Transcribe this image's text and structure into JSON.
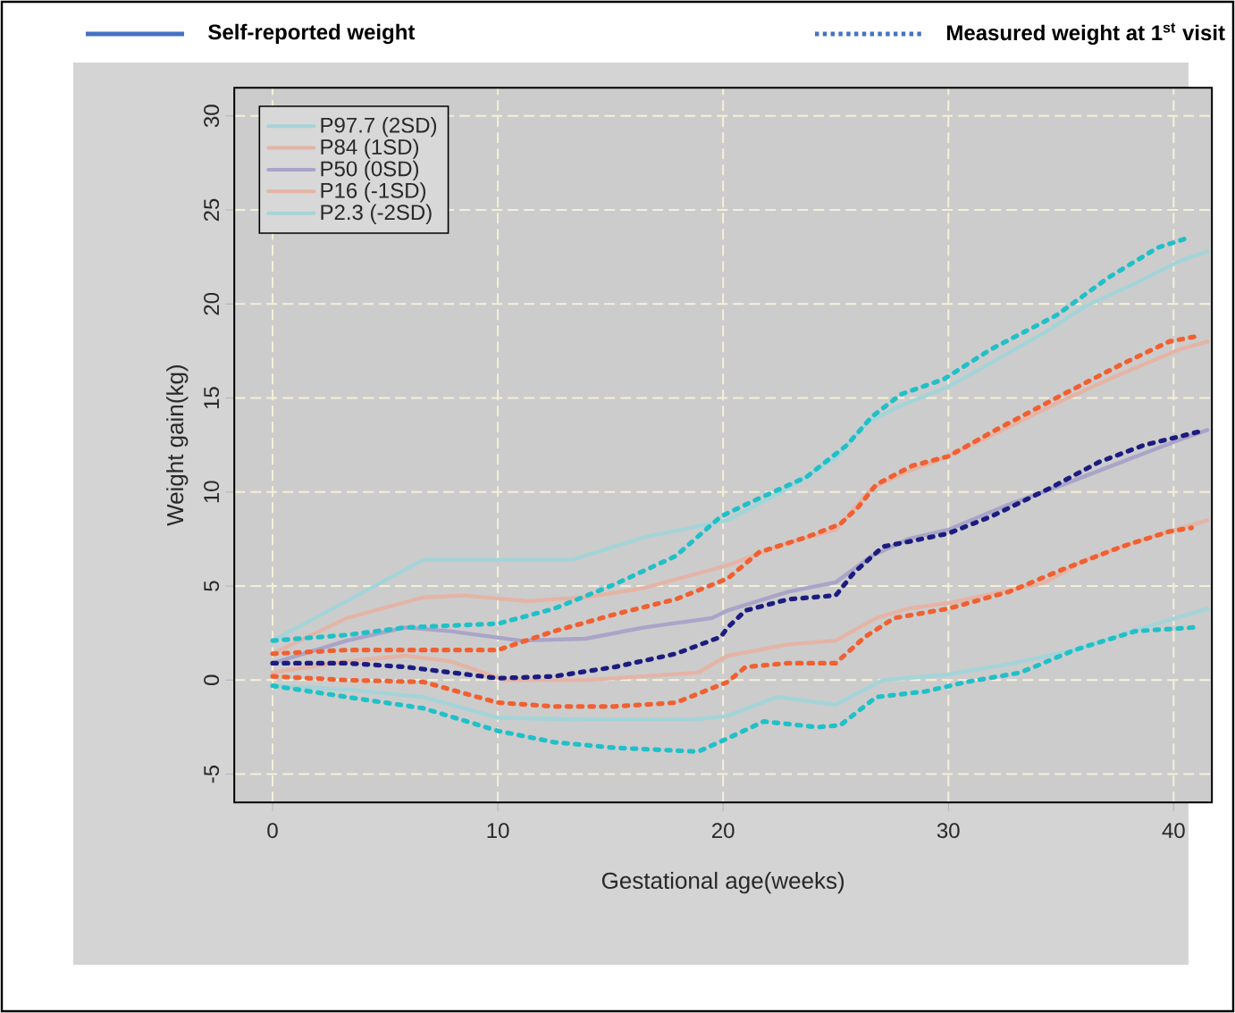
{
  "chart_data": {
    "type": "line",
    "xlabel": "Gestational age(weeks)",
    "ylabel": "Weight gain(kg)",
    "annotations": [
      "Self-reported weight",
      "Measured weight at 1$^{st}$ visit"
    ],
    "xlim": [
      -1.7,
      41.7
    ],
    "ylim": [
      -6.5,
      31.5
    ],
    "xticks": [
      0,
      10,
      20,
      30,
      40
    ],
    "yticks": [
      -5,
      0,
      5,
      10,
      15,
      20,
      25,
      30
    ],
    "grid": true,
    "legend": "top left",
    "marker": "none",
    "series": [
      {
        "name": "P97.7 (2SD)",
        "color": "#a4d4d8",
        "line_style": "solid",
        "x": [
          0,
          3.3,
          6.7,
          10,
          13.3,
          16.5,
          20.2,
          22.6,
          25,
          26.4,
          27.9,
          30,
          32.1,
          34.3,
          36.1,
          38.3,
          40.3,
          41.5
        ],
        "values": [
          2.1,
          4.2,
          6.4,
          6.4,
          6.4,
          7.6,
          8.5,
          10.0,
          11.8,
          13.7,
          14.6,
          15.6,
          17.0,
          18.5,
          19.9,
          21.1,
          22.3,
          22.8
        ]
      },
      {
        "name": "P84 (1SD)",
        "color": "#e4b4a6",
        "line_style": "solid",
        "x": [
          0,
          3.3,
          6.7,
          8.5,
          11.3,
          13.9,
          16.5,
          20.2,
          22.9,
          25,
          26.6,
          28.2,
          30,
          32.4,
          35.1,
          37.7,
          40.3,
          41.5
        ],
        "values": [
          1.4,
          3.3,
          4.4,
          4.5,
          4.2,
          4.4,
          4.9,
          6.1,
          7.3,
          8.0,
          10.2,
          11.1,
          11.9,
          13.3,
          14.9,
          16.3,
          17.6,
          18.0
        ]
      },
      {
        "name": "P50 (0SD)",
        "color": "#a9a4c8",
        "line_style": "solid",
        "x": [
          0,
          3.3,
          5.9,
          7.9,
          11,
          13.9,
          16.5,
          19.5,
          20.2,
          22.9,
          25,
          26.6,
          28.2,
          30,
          32.4,
          35.1,
          37.7,
          40.3,
          41.5
        ],
        "values": [
          0.9,
          2.1,
          2.8,
          2.6,
          2.1,
          2.2,
          2.8,
          3.3,
          3.7,
          4.7,
          5.2,
          6.6,
          7.5,
          8.0,
          9.2,
          10.4,
          11.6,
          12.8,
          13.3
        ]
      },
      {
        "name": "P16 (-1SD)",
        "color": "#e4b4a6",
        "line_style": "solid",
        "x": [
          0,
          3.3,
          5.9,
          7.9,
          10.3,
          13.9,
          18.9,
          20.2,
          22.9,
          25,
          26.8,
          28.2,
          30,
          32.4,
          34.3,
          36.1,
          38.7,
          41.5
        ],
        "values": [
          0.4,
          1.0,
          1.3,
          1.0,
          0,
          0,
          0.4,
          1.3,
          1.9,
          2.1,
          3.3,
          3.8,
          4.1,
          4.7,
          5.2,
          6.4,
          7.5,
          8.5
        ]
      },
      {
        "name": "P2.3 (-2SD)",
        "color": "#a4d4d8",
        "line_style": "solid",
        "x": [
          0,
          3.3,
          6.7,
          10,
          13.9,
          18.7,
          20.2,
          22.4,
          25,
          27.1,
          30,
          32.9,
          35.6,
          38.7,
          41.5
        ],
        "values": [
          -0.3,
          -0.5,
          -0.9,
          -2.0,
          -2.1,
          -2.1,
          -1.9,
          -0.9,
          -1.3,
          0,
          0.3,
          0.9,
          1.6,
          2.8,
          3.8
        ]
      },
      {
        "color": "#20c0c8",
        "line_style": "dotted",
        "x": [
          0,
          3.3,
          5.9,
          10,
          12.5,
          15.2,
          17.9,
          19.9,
          21.3,
          23.7,
          25.5,
          26.6,
          27.9,
          29.8,
          31.9,
          34.8,
          37.1,
          39.3,
          40.6
        ],
        "values": [
          2.1,
          2.4,
          2.8,
          3.0,
          3.8,
          5.1,
          6.6,
          8.7,
          9.5,
          10.8,
          12.5,
          14.0,
          15.2,
          16.0,
          17.6,
          19.4,
          21.4,
          23.0,
          23.5
        ]
      },
      {
        "color": "#f06030",
        "line_style": "dotted",
        "x": [
          0,
          3.3,
          6.7,
          10,
          12.5,
          15.2,
          17.9,
          20.2,
          21.6,
          23.7,
          25.2,
          26,
          26.8,
          28.4,
          30,
          32.1,
          35.1,
          37.7,
          39.8,
          41.1
        ],
        "values": [
          1.4,
          1.6,
          1.6,
          1.6,
          2.6,
          3.5,
          4.3,
          5.4,
          6.8,
          7.6,
          8.3,
          9.2,
          10.4,
          11.4,
          11.9,
          13.3,
          15.2,
          16.8,
          18.0,
          18.3
        ]
      },
      {
        "color": "#1c1c80",
        "line_style": "dotted",
        "x": [
          0,
          3.3,
          5.9,
          10,
          12.5,
          15.2,
          17.9,
          19.9,
          20.2,
          21,
          22.9,
          25,
          25.8,
          27.1,
          28.4,
          30,
          31.9,
          34.5,
          36.7,
          38.7,
          41.1
        ],
        "values": [
          0.9,
          0.9,
          0.7,
          0.1,
          0.2,
          0.7,
          1.4,
          2.3,
          2.8,
          3.7,
          4.3,
          4.5,
          5.7,
          7.1,
          7.4,
          7.8,
          8.7,
          10.2,
          11.6,
          12.5,
          13.2
        ]
      },
      {
        "color": "#f06030",
        "line_style": "dotted",
        "x": [
          0,
          3.3,
          6.7,
          10,
          12.5,
          15.2,
          17.9,
          20.2,
          21,
          22.9,
          25,
          26.3,
          27.6,
          30,
          32.7,
          35.1,
          37.7,
          39.8,
          40.8
        ],
        "values": [
          0.2,
          0,
          -0.1,
          -1.2,
          -1.4,
          -1.4,
          -1.2,
          -0.1,
          0.7,
          0.9,
          0.9,
          2.3,
          3.3,
          3.8,
          4.7,
          5.9,
          7.1,
          7.9,
          8.1
        ]
      },
      {
        "color": "#20c0c8",
        "line_style": "dotted",
        "x": [
          0,
          3.3,
          6.7,
          10,
          12.5,
          15.2,
          18.9,
          20.2,
          21.8,
          24.2,
          25.2,
          26.8,
          29,
          30.8,
          33.2,
          35.6,
          38.3,
          40.9
        ],
        "values": [
          -0.3,
          -0.9,
          -1.5,
          -2.7,
          -3.3,
          -3.6,
          -3.8,
          -3.1,
          -2.2,
          -2.5,
          -2.4,
          -0.9,
          -0.6,
          -0.1,
          0.4,
          1.6,
          2.6,
          2.8
        ]
      }
    ]
  }
}
